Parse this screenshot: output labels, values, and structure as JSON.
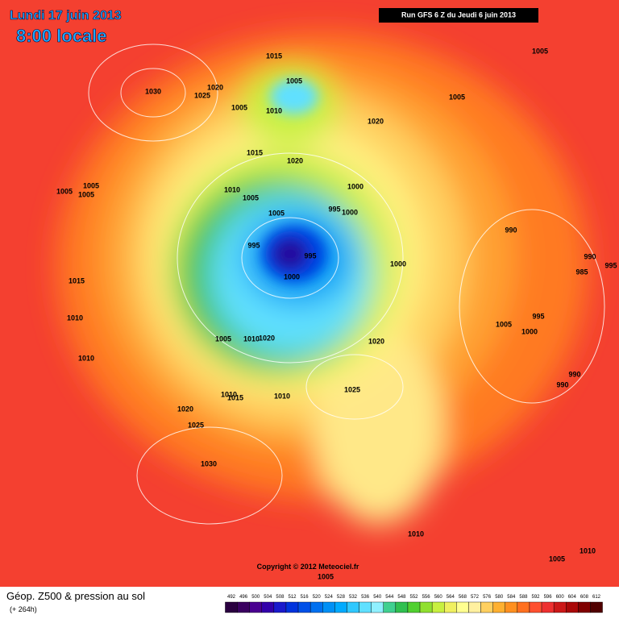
{
  "header": {
    "date": "Lundi 17 juin 2013",
    "time": "8:00 locale",
    "run": "Run GFS 6 Z du Jeudi 6 juin 2013"
  },
  "copyright": "Copyright © 2012 Meteociel.fr",
  "footer": {
    "title": "Géop. Z500 & pression au sol",
    "lead": "(+ 264h)"
  },
  "colorbar": {
    "labels": [
      492,
      496,
      500,
      504,
      508,
      512,
      516,
      520,
      524,
      528,
      532,
      536,
      540,
      544,
      548,
      552,
      556,
      560,
      564,
      568,
      572,
      576,
      580,
      584,
      588,
      592,
      596,
      600,
      604,
      608,
      612
    ],
    "colors": [
      "#2a0040",
      "#3a0060",
      "#4a0090",
      "#3300aa",
      "#1a1acc",
      "#0033dd",
      "#0050e8",
      "#0070f0",
      "#0090f5",
      "#00aaff",
      "#30c8ff",
      "#60e0ff",
      "#90f0ff",
      "#40d090",
      "#30c050",
      "#50d030",
      "#90e030",
      "#c8f040",
      "#f0f060",
      "#ffff90",
      "#fff0a0",
      "#ffd060",
      "#ffb030",
      "#ff9020",
      "#ff7020",
      "#ff5030",
      "#ee3030",
      "#cc1818",
      "#aa0808",
      "#800000",
      "#500000"
    ]
  },
  "isobar_labels": [
    "1015",
    "1005",
    "1030",
    "1020",
    "1025",
    "1005",
    "1010",
    "1020",
    "1005",
    "1005",
    "1015",
    "1020",
    "1005",
    "1005",
    "1005",
    "1010",
    "1005",
    "1000",
    "1005",
    "995",
    "1000",
    "990",
    "995",
    "995",
    "1000",
    "1000",
    "990",
    "995",
    "985",
    "1015",
    "1010",
    "995",
    "1005",
    "1000",
    "1005",
    "1010",
    "1020",
    "1020",
    "1010",
    "990",
    "990",
    "1025",
    "1010",
    "1015",
    "1010",
    "1020",
    "1025",
    "1030",
    "1010",
    "1005",
    "1010",
    "1005"
  ]
}
